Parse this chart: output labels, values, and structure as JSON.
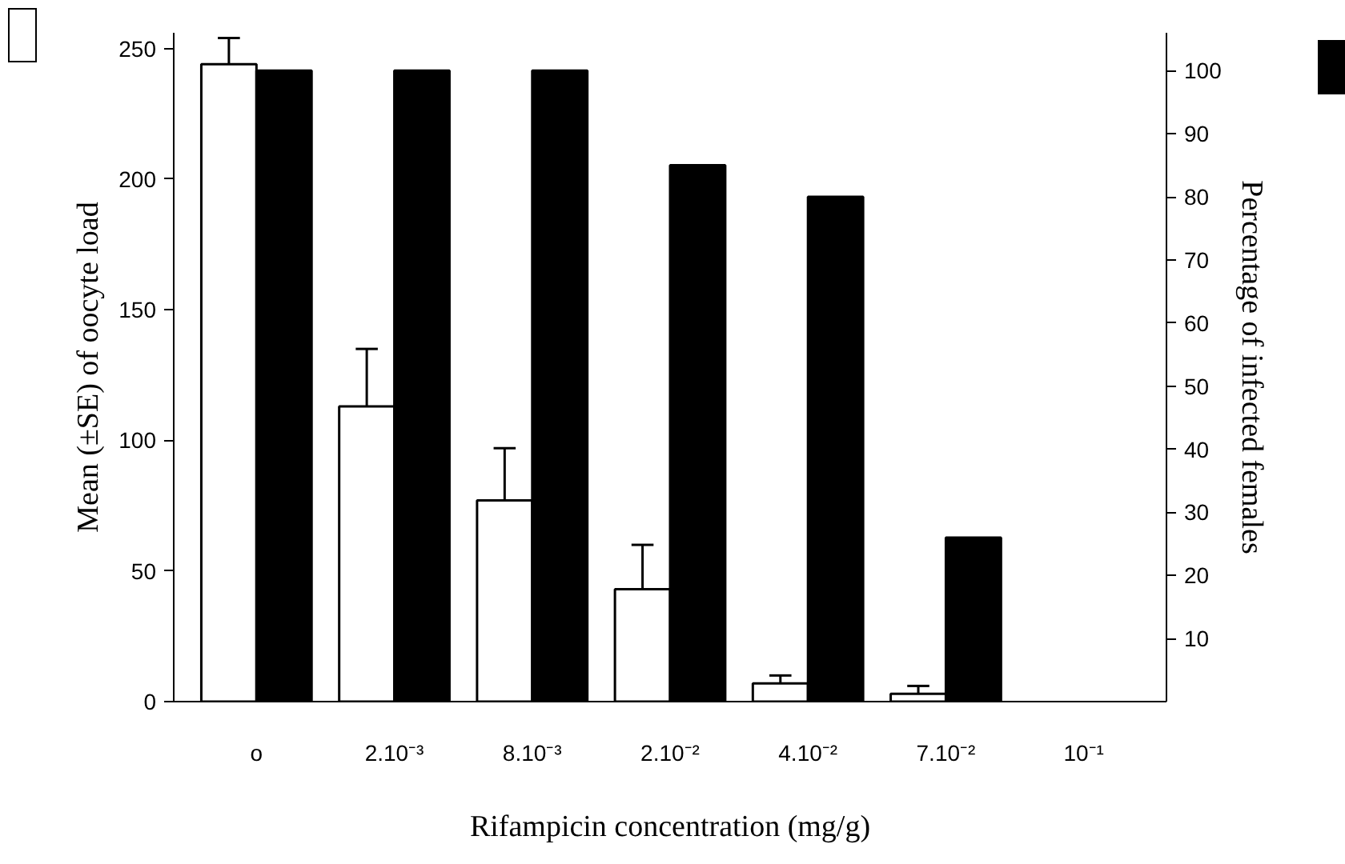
{
  "chart_data": {
    "type": "bar",
    "categories": [
      "o",
      "2.10⁻³",
      "8.10⁻³",
      "2.10⁻²",
      "4.10⁻²",
      "7.10⁻²",
      "10⁻¹"
    ],
    "xlabel": "Rifampicin concentration (mg/g)",
    "ylabel": "Mean (±SE) of oocyte load",
    "y2label": "Percentage of infected females",
    "ylim": [
      0,
      256
    ],
    "yticks": [
      0,
      50,
      100,
      150,
      200,
      250
    ],
    "y2lim": [
      0,
      106
    ],
    "y2ticks": [
      10,
      20,
      30,
      40,
      50,
      60,
      70,
      80,
      90,
      100
    ],
    "series": [
      {
        "color": "#ffffff",
        "values": [
          244,
          113,
          77,
          43,
          7,
          3,
          0
        ],
        "errors": [
          [
            244,
            254
          ],
          [
            113,
            135
          ],
          [
            77,
            97
          ],
          [
            43,
            60
          ],
          [
            7,
            10
          ],
          [
            3,
            6
          ],
          null
        ]
      },
      {
        "color": "#000000",
        "axis": "y2",
        "values": [
          100,
          100,
          100,
          85,
          80,
          26,
          0
        ]
      }
    ]
  }
}
